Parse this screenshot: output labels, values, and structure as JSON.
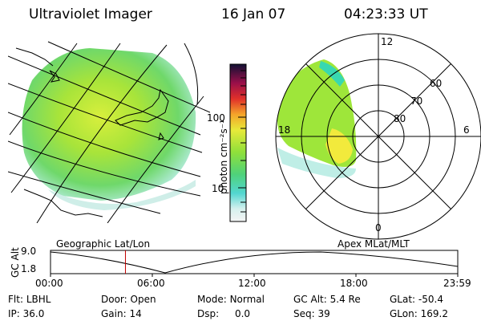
{
  "header": {
    "title": "Ultraviolet Imager",
    "date": "16 Jan 07",
    "time": "04:23:33 UT"
  },
  "colorbar": {
    "unit_label": "photon cm⁻²s⁻¹",
    "ticks": [
      "100",
      "10"
    ]
  },
  "polar": {
    "mlt_labels": {
      "top": "12",
      "left": "18",
      "right": "6",
      "bottom": "0"
    },
    "lat_labels": [
      "60",
      "70",
      "80"
    ]
  },
  "timeline": {
    "left_title": "Geographic Lat/Lon",
    "right_title": "Apex MLat/MLT",
    "axis_label": "GC Alt",
    "y_ticks": [
      "9.0",
      "1.8"
    ],
    "x_ticks": [
      "00:00",
      "06:00",
      "12:00",
      "18:00",
      "23:59"
    ],
    "marker_time_fraction": 0.184,
    "marker_color": "#c00000"
  },
  "info": {
    "row1": [
      {
        "label": "Flt:",
        "value": "LBHL"
      },
      {
        "label": "Door:",
        "value": "Open"
      },
      {
        "label": "Mode:",
        "value": "Normal"
      },
      {
        "label": "GC Alt:",
        "value": "5.4 Re"
      },
      {
        "label": "GLat:",
        "value": "-50.4"
      }
    ],
    "row2": [
      {
        "label": "IP:",
        "value": "36.0"
      },
      {
        "label": "Gain:",
        "value": "14"
      },
      {
        "label": "Dsp:",
        "value": "0.0"
      },
      {
        "label": "Seq:",
        "value": "39"
      },
      {
        "label": "GLon:",
        "value": "169.2"
      }
    ]
  },
  "colors": {
    "aurora_main": "#9ee63a",
    "aurora_bright": "#f2ea3c",
    "aurora_low": "#38d8b0",
    "aurora_faint": "#bfeee6"
  }
}
